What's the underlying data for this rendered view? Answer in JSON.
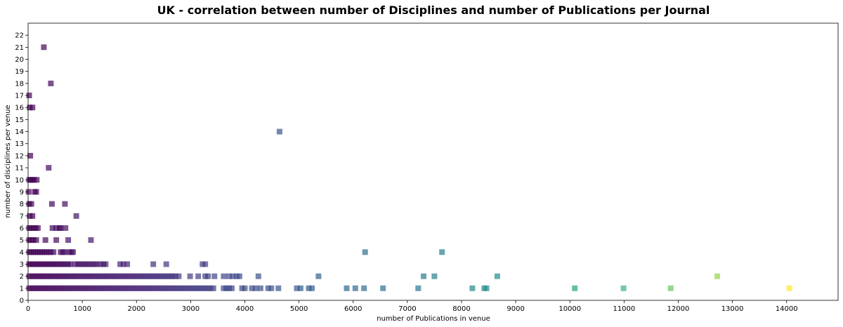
{
  "chart_data": {
    "type": "scatter",
    "title": "UK - correlation between number of Disciplines and number of Publications per Journal",
    "xlabel": "number of Publications in venue",
    "ylabel": "number of disciplines per venue",
    "xlim": [
      0,
      14950
    ],
    "ylim": [
      0,
      23
    ],
    "xticks": [
      0,
      1000,
      2000,
      3000,
      4000,
      5000,
      6000,
      7000,
      8000,
      9000,
      10000,
      11000,
      12000,
      13000,
      14000
    ],
    "yticks": [
      0,
      1,
      2,
      3,
      4,
      5,
      6,
      7,
      8,
      9,
      10,
      11,
      12,
      13,
      14,
      15,
      16,
      17,
      18,
      19,
      20,
      21,
      22
    ],
    "colormap": "viridis",
    "color_min": 0,
    "color_max": 14050,
    "marker": "square",
    "alpha": 0.7,
    "grid": false,
    "points": [
      {
        "x": 290,
        "y": 21
      },
      {
        "x": 420,
        "y": 18
      },
      {
        "x": 20,
        "y": 17
      },
      {
        "x": 30,
        "y": 16
      },
      {
        "x": 80,
        "y": 16
      },
      {
        "x": 4640,
        "y": 14
      },
      {
        "x": 40,
        "y": 12
      },
      {
        "x": 380,
        "y": 11
      },
      {
        "x": 20,
        "y": 10
      },
      {
        "x": 50,
        "y": 10
      },
      {
        "x": 80,
        "y": 10
      },
      {
        "x": 110,
        "y": 10
      },
      {
        "x": 160,
        "y": 10
      },
      {
        "x": 10,
        "y": 9
      },
      {
        "x": 120,
        "y": 9
      },
      {
        "x": 150,
        "y": 9
      },
      {
        "x": 20,
        "y": 8
      },
      {
        "x": 60,
        "y": 8
      },
      {
        "x": 440,
        "y": 8
      },
      {
        "x": 680,
        "y": 8
      },
      {
        "x": 30,
        "y": 7
      },
      {
        "x": 80,
        "y": 7
      },
      {
        "x": 890,
        "y": 7
      },
      {
        "x": 20,
        "y": 6
      },
      {
        "x": 60,
        "y": 6
      },
      {
        "x": 100,
        "y": 6
      },
      {
        "x": 140,
        "y": 6
      },
      {
        "x": 180,
        "y": 6
      },
      {
        "x": 450,
        "y": 6
      },
      {
        "x": 520,
        "y": 6
      },
      {
        "x": 580,
        "y": 6
      },
      {
        "x": 600,
        "y": 6
      },
      {
        "x": 690,
        "y": 6
      },
      {
        "x": 20,
        "y": 5
      },
      {
        "x": 60,
        "y": 5
      },
      {
        "x": 100,
        "y": 5
      },
      {
        "x": 150,
        "y": 5
      },
      {
        "x": 320,
        "y": 5
      },
      {
        "x": 520,
        "y": 5
      },
      {
        "x": 740,
        "y": 5
      },
      {
        "x": 1160,
        "y": 5
      },
      {
        "x": 20,
        "y": 4
      },
      {
        "x": 60,
        "y": 4
      },
      {
        "x": 100,
        "y": 4
      },
      {
        "x": 140,
        "y": 4
      },
      {
        "x": 180,
        "y": 4
      },
      {
        "x": 220,
        "y": 4
      },
      {
        "x": 260,
        "y": 4
      },
      {
        "x": 300,
        "y": 4
      },
      {
        "x": 340,
        "y": 4
      },
      {
        "x": 380,
        "y": 4
      },
      {
        "x": 420,
        "y": 4
      },
      {
        "x": 470,
        "y": 4
      },
      {
        "x": 600,
        "y": 4
      },
      {
        "x": 640,
        "y": 4
      },
      {
        "x": 680,
        "y": 4
      },
      {
        "x": 760,
        "y": 4
      },
      {
        "x": 800,
        "y": 4
      },
      {
        "x": 830,
        "y": 4
      },
      {
        "x": 6220,
        "y": 4
      },
      {
        "x": 7640,
        "y": 4
      },
      {
        "x": 20,
        "y": 3
      },
      {
        "x": 60,
        "y": 3
      },
      {
        "x": 100,
        "y": 3
      },
      {
        "x": 140,
        "y": 3
      },
      {
        "x": 180,
        "y": 3
      },
      {
        "x": 220,
        "y": 3
      },
      {
        "x": 260,
        "y": 3
      },
      {
        "x": 300,
        "y": 3
      },
      {
        "x": 340,
        "y": 3
      },
      {
        "x": 380,
        "y": 3
      },
      {
        "x": 420,
        "y": 3
      },
      {
        "x": 460,
        "y": 3
      },
      {
        "x": 500,
        "y": 3
      },
      {
        "x": 540,
        "y": 3
      },
      {
        "x": 580,
        "y": 3
      },
      {
        "x": 620,
        "y": 3
      },
      {
        "x": 660,
        "y": 3
      },
      {
        "x": 700,
        "y": 3
      },
      {
        "x": 740,
        "y": 3
      },
      {
        "x": 780,
        "y": 3
      },
      {
        "x": 870,
        "y": 3
      },
      {
        "x": 920,
        "y": 3
      },
      {
        "x": 970,
        "y": 3
      },
      {
        "x": 1020,
        "y": 3
      },
      {
        "x": 1070,
        "y": 3
      },
      {
        "x": 1120,
        "y": 3
      },
      {
        "x": 1170,
        "y": 3
      },
      {
        "x": 1220,
        "y": 3
      },
      {
        "x": 1270,
        "y": 3
      },
      {
        "x": 1330,
        "y": 3
      },
      {
        "x": 1390,
        "y": 3
      },
      {
        "x": 1430,
        "y": 3
      },
      {
        "x": 1700,
        "y": 3
      },
      {
        "x": 1760,
        "y": 3
      },
      {
        "x": 1830,
        "y": 3
      },
      {
        "x": 2310,
        "y": 3
      },
      {
        "x": 2550,
        "y": 3
      },
      {
        "x": 3220,
        "y": 3
      },
      {
        "x": 3270,
        "y": 3
      },
      {
        "x": 20,
        "y": 2
      },
      {
        "x": 70,
        "y": 2
      },
      {
        "x": 120,
        "y": 2
      },
      {
        "x": 170,
        "y": 2
      },
      {
        "x": 220,
        "y": 2
      },
      {
        "x": 270,
        "y": 2
      },
      {
        "x": 320,
        "y": 2
      },
      {
        "x": 370,
        "y": 2
      },
      {
        "x": 420,
        "y": 2
      },
      {
        "x": 470,
        "y": 2
      },
      {
        "x": 520,
        "y": 2
      },
      {
        "x": 570,
        "y": 2
      },
      {
        "x": 620,
        "y": 2
      },
      {
        "x": 670,
        "y": 2
      },
      {
        "x": 720,
        "y": 2
      },
      {
        "x": 770,
        "y": 2
      },
      {
        "x": 820,
        "y": 2
      },
      {
        "x": 870,
        "y": 2
      },
      {
        "x": 920,
        "y": 2
      },
      {
        "x": 970,
        "y": 2
      },
      {
        "x": 1020,
        "y": 2
      },
      {
        "x": 1070,
        "y": 2
      },
      {
        "x": 1120,
        "y": 2
      },
      {
        "x": 1170,
        "y": 2
      },
      {
        "x": 1220,
        "y": 2
      },
      {
        "x": 1270,
        "y": 2
      },
      {
        "x": 1320,
        "y": 2
      },
      {
        "x": 1370,
        "y": 2
      },
      {
        "x": 1420,
        "y": 2
      },
      {
        "x": 1470,
        "y": 2
      },
      {
        "x": 1520,
        "y": 2
      },
      {
        "x": 1570,
        "y": 2
      },
      {
        "x": 1620,
        "y": 2
      },
      {
        "x": 1670,
        "y": 2
      },
      {
        "x": 1720,
        "y": 2
      },
      {
        "x": 1770,
        "y": 2
      },
      {
        "x": 1820,
        "y": 2
      },
      {
        "x": 1870,
        "y": 2
      },
      {
        "x": 1920,
        "y": 2
      },
      {
        "x": 1970,
        "y": 2
      },
      {
        "x": 2020,
        "y": 2
      },
      {
        "x": 2070,
        "y": 2
      },
      {
        "x": 2120,
        "y": 2
      },
      {
        "x": 2170,
        "y": 2
      },
      {
        "x": 2220,
        "y": 2
      },
      {
        "x": 2270,
        "y": 2
      },
      {
        "x": 2320,
        "y": 2
      },
      {
        "x": 2370,
        "y": 2
      },
      {
        "x": 2420,
        "y": 2
      },
      {
        "x": 2470,
        "y": 2
      },
      {
        "x": 2520,
        "y": 2
      },
      {
        "x": 2570,
        "y": 2
      },
      {
        "x": 2620,
        "y": 2
      },
      {
        "x": 2670,
        "y": 2
      },
      {
        "x": 2720,
        "y": 2
      },
      {
        "x": 2780,
        "y": 2
      },
      {
        "x": 2990,
        "y": 2
      },
      {
        "x": 3140,
        "y": 2
      },
      {
        "x": 3270,
        "y": 2
      },
      {
        "x": 3320,
        "y": 2
      },
      {
        "x": 3440,
        "y": 2
      },
      {
        "x": 3610,
        "y": 2
      },
      {
        "x": 3710,
        "y": 2
      },
      {
        "x": 3780,
        "y": 2
      },
      {
        "x": 3850,
        "y": 2
      },
      {
        "x": 3900,
        "y": 2
      },
      {
        "x": 4250,
        "y": 2
      },
      {
        "x": 5360,
        "y": 2
      },
      {
        "x": 7300,
        "y": 2
      },
      {
        "x": 7500,
        "y": 2
      },
      {
        "x": 8660,
        "y": 2
      },
      {
        "x": 12720,
        "y": 2
      },
      {
        "x": 20,
        "y": 1
      },
      {
        "x": 70,
        "y": 1
      },
      {
        "x": 120,
        "y": 1
      },
      {
        "x": 170,
        "y": 1
      },
      {
        "x": 220,
        "y": 1
      },
      {
        "x": 270,
        "y": 1
      },
      {
        "x": 320,
        "y": 1
      },
      {
        "x": 370,
        "y": 1
      },
      {
        "x": 420,
        "y": 1
      },
      {
        "x": 470,
        "y": 1
      },
      {
        "x": 520,
        "y": 1
      },
      {
        "x": 570,
        "y": 1
      },
      {
        "x": 620,
        "y": 1
      },
      {
        "x": 670,
        "y": 1
      },
      {
        "x": 720,
        "y": 1
      },
      {
        "x": 770,
        "y": 1
      },
      {
        "x": 820,
        "y": 1
      },
      {
        "x": 870,
        "y": 1
      },
      {
        "x": 920,
        "y": 1
      },
      {
        "x": 970,
        "y": 1
      },
      {
        "x": 1020,
        "y": 1
      },
      {
        "x": 1070,
        "y": 1
      },
      {
        "x": 1120,
        "y": 1
      },
      {
        "x": 1170,
        "y": 1
      },
      {
        "x": 1220,
        "y": 1
      },
      {
        "x": 1270,
        "y": 1
      },
      {
        "x": 1320,
        "y": 1
      },
      {
        "x": 1370,
        "y": 1
      },
      {
        "x": 1420,
        "y": 1
      },
      {
        "x": 1470,
        "y": 1
      },
      {
        "x": 1520,
        "y": 1
      },
      {
        "x": 1570,
        "y": 1
      },
      {
        "x": 1620,
        "y": 1
      },
      {
        "x": 1670,
        "y": 1
      },
      {
        "x": 1720,
        "y": 1
      },
      {
        "x": 1770,
        "y": 1
      },
      {
        "x": 1820,
        "y": 1
      },
      {
        "x": 1870,
        "y": 1
      },
      {
        "x": 1920,
        "y": 1
      },
      {
        "x": 1970,
        "y": 1
      },
      {
        "x": 2020,
        "y": 1
      },
      {
        "x": 2070,
        "y": 1
      },
      {
        "x": 2120,
        "y": 1
      },
      {
        "x": 2170,
        "y": 1
      },
      {
        "x": 2220,
        "y": 1
      },
      {
        "x": 2270,
        "y": 1
      },
      {
        "x": 2320,
        "y": 1
      },
      {
        "x": 2370,
        "y": 1
      },
      {
        "x": 2420,
        "y": 1
      },
      {
        "x": 2470,
        "y": 1
      },
      {
        "x": 2520,
        "y": 1
      },
      {
        "x": 2570,
        "y": 1
      },
      {
        "x": 2620,
        "y": 1
      },
      {
        "x": 2670,
        "y": 1
      },
      {
        "x": 2720,
        "y": 1
      },
      {
        "x": 2770,
        "y": 1
      },
      {
        "x": 2820,
        "y": 1
      },
      {
        "x": 2870,
        "y": 1
      },
      {
        "x": 2920,
        "y": 1
      },
      {
        "x": 2970,
        "y": 1
      },
      {
        "x": 3020,
        "y": 1
      },
      {
        "x": 3070,
        "y": 1
      },
      {
        "x": 3120,
        "y": 1
      },
      {
        "x": 3170,
        "y": 1
      },
      {
        "x": 3220,
        "y": 1
      },
      {
        "x": 3270,
        "y": 1
      },
      {
        "x": 3320,
        "y": 1
      },
      {
        "x": 3370,
        "y": 1
      },
      {
        "x": 3420,
        "y": 1
      },
      {
        "x": 3610,
        "y": 1
      },
      {
        "x": 3660,
        "y": 1
      },
      {
        "x": 3710,
        "y": 1
      },
      {
        "x": 3760,
        "y": 1
      },
      {
        "x": 3950,
        "y": 1
      },
      {
        "x": 4000,
        "y": 1
      },
      {
        "x": 4130,
        "y": 1
      },
      {
        "x": 4200,
        "y": 1
      },
      {
        "x": 4290,
        "y": 1
      },
      {
        "x": 4430,
        "y": 1
      },
      {
        "x": 4490,
        "y": 1
      },
      {
        "x": 4620,
        "y": 1
      },
      {
        "x": 4960,
        "y": 1
      },
      {
        "x": 5030,
        "y": 1
      },
      {
        "x": 5180,
        "y": 1
      },
      {
        "x": 5240,
        "y": 1
      },
      {
        "x": 5880,
        "y": 1
      },
      {
        "x": 6040,
        "y": 1
      },
      {
        "x": 6200,
        "y": 1
      },
      {
        "x": 6550,
        "y": 1
      },
      {
        "x": 7200,
        "y": 1
      },
      {
        "x": 8200,
        "y": 1
      },
      {
        "x": 8420,
        "y": 1
      },
      {
        "x": 8460,
        "y": 1
      },
      {
        "x": 10090,
        "y": 1
      },
      {
        "x": 10990,
        "y": 1
      },
      {
        "x": 11860,
        "y": 1
      },
      {
        "x": 14050,
        "y": 1
      }
    ]
  }
}
